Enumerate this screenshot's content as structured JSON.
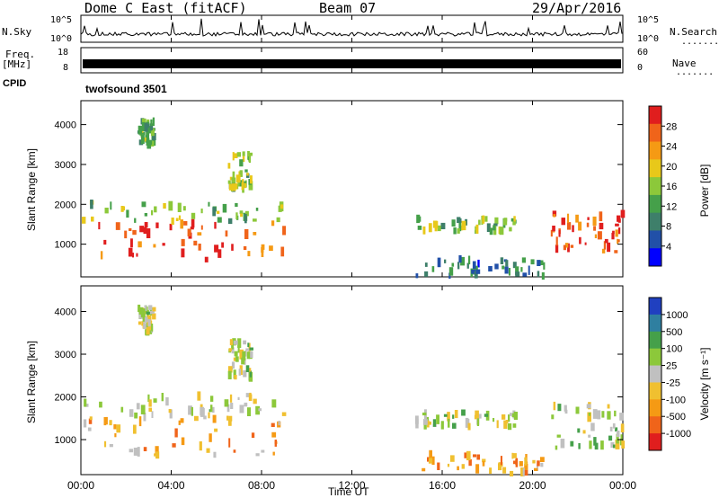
{
  "header": {
    "station": "Dome C East (fitACF)",
    "beam": "Beam 07",
    "date": "29/Apr/2016"
  },
  "strip_labels": {
    "nsky": "N.Sky",
    "freq_line1": "Freq.",
    "freq_line2": "[MHz]",
    "cpid": "CPID",
    "nsearch": "N.Search",
    "nave": "Nave",
    "dots": "......."
  },
  "strip_ticks": {
    "nsky_top": "10^5",
    "nsky_bottom": "10^0",
    "nsearch_top": "10^5",
    "nsearch_bottom": "10^0",
    "freq_top": "18",
    "freq_bottom": "8",
    "nave_top": "60",
    "nave_bottom": "0"
  },
  "cpid_text": "twofsound 3501",
  "panels": {
    "power": {
      "ylabel": "Slant Range [km]",
      "colorbar_label": "Power [dB]",
      "colorbar_ticks": [
        "28",
        "24",
        "20",
        "16",
        "12",
        "8",
        "4"
      ]
    },
    "velocity": {
      "ylabel": "Slant Range [km]",
      "colorbar_label": "Velocity [m s⁻¹]",
      "colorbar_ticks": [
        "1000",
        "500",
        "100",
        "25",
        "-25",
        "-100",
        "-500",
        "-1000"
      ]
    }
  },
  "xaxis": {
    "label": "Time UT",
    "ticks": [
      "00:00",
      "04:00",
      "08:00",
      "12:00",
      "16:00",
      "20:00",
      "00:00"
    ]
  },
  "yticks": [
    "1000",
    "2000",
    "3000",
    "4000"
  ],
  "colors": {
    "power_scale": [
      "#0000ff",
      "#2150a8",
      "#3e7f6a",
      "#45a04a",
      "#8cc83a",
      "#e8c81a",
      "#f59a14",
      "#f0641a",
      "#e01e1e"
    ],
    "velocity_scale": [
      "#e01e1e",
      "#f0641a",
      "#f59a14",
      "#f0c030",
      "#c0c0c0",
      "#8cc83a",
      "#45a04a",
      "#2f7fa0",
      "#2040c0"
    ]
  },
  "chart_data": [
    {
      "type": "heatmap",
      "title": "Power",
      "x_unit": "hours UT",
      "y_unit": "km",
      "xlim": [
        0,
        24
      ],
      "ylim": [
        180,
        4600
      ],
      "zlim": [
        0,
        30
      ],
      "scatter_regions": [
        {
          "t0": 0.0,
          "t1": 9.0,
          "r0": 600,
          "r1": 1550,
          "value": 26
        },
        {
          "t0": 0.0,
          "t1": 9.0,
          "r0": 1550,
          "r1": 2050,
          "value": 14
        },
        {
          "t0": 14.8,
          "t1": 19.2,
          "r0": 1300,
          "r1": 1650,
          "value": 14
        },
        {
          "t0": 20.8,
          "t1": 24.0,
          "r0": 800,
          "r1": 1800,
          "value": 26
        },
        {
          "t0": 2.5,
          "t1": 3.2,
          "r0": 3500,
          "r1": 4100,
          "value": 12
        },
        {
          "t0": 6.5,
          "t1": 7.5,
          "r0": 2400,
          "r1": 3300,
          "value": 14
        },
        {
          "t0": 14.8,
          "t1": 20.5,
          "r0": 200,
          "r1": 650,
          "value": 8
        }
      ]
    },
    {
      "type": "heatmap",
      "title": "Velocity",
      "x_unit": "hours UT",
      "y_unit": "km",
      "xlim": [
        0,
        24
      ],
      "ylim": [
        180,
        4600
      ],
      "zlim": [
        -1000,
        1000
      ],
      "scatter_regions": [
        {
          "t0": 0.0,
          "t1": 9.0,
          "r0": 600,
          "r1": 1550,
          "value": -300
        },
        {
          "t0": 0.0,
          "t1": 9.0,
          "r0": 1550,
          "r1": 2050,
          "value": 60
        },
        {
          "t0": 14.8,
          "t1": 19.2,
          "r0": 1300,
          "r1": 1650,
          "value": 60
        },
        {
          "t0": 20.8,
          "t1": 24.0,
          "r0": 800,
          "r1": 1800,
          "value": 80
        },
        {
          "t0": 2.5,
          "t1": 3.2,
          "r0": 3500,
          "r1": 4100,
          "value": 0
        },
        {
          "t0": 6.5,
          "t1": 7.5,
          "r0": 2400,
          "r1": 3300,
          "value": 40
        },
        {
          "t0": 14.8,
          "t1": 20.5,
          "r0": 200,
          "r1": 650,
          "value": -300
        }
      ]
    }
  ]
}
